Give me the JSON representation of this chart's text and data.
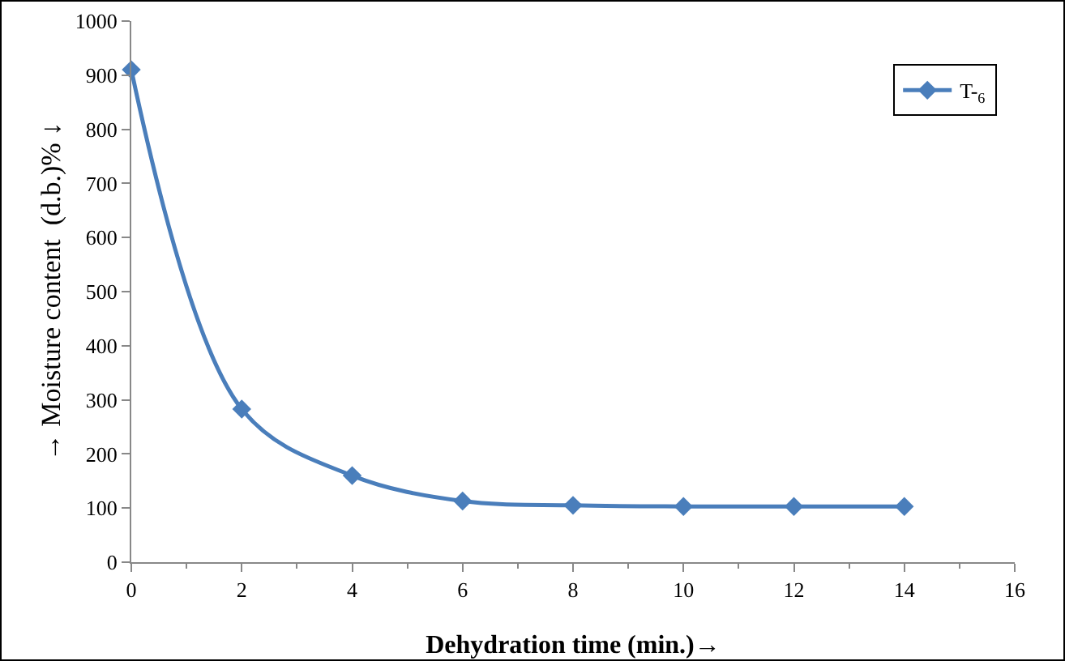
{
  "chart_data": {
    "type": "line",
    "xlabel": "Dehydration time (min.)→",
    "ylabel": "→ Moisture content  (d.b.)% ↓",
    "x": [
      0,
      2,
      4,
      6,
      8,
      10,
      12,
      14
    ],
    "series": [
      {
        "name": "T-$_{6}$",
        "color": "#4a7ebb",
        "values": [
          910,
          283,
          160,
          113,
          105,
          103,
          103,
          103
        ]
      }
    ],
    "xlim": [
      0,
      16
    ],
    "xticks": [
      0,
      2,
      4,
      6,
      8,
      10,
      12,
      14,
      16
    ],
    "ylim": [
      0,
      1000
    ],
    "yticks": [
      0,
      100,
      200,
      300,
      400,
      500,
      600,
      700,
      800,
      900,
      1000
    ],
    "grid": false,
    "legend": "top right",
    "marker": "diamond",
    "line_style": "solid"
  }
}
